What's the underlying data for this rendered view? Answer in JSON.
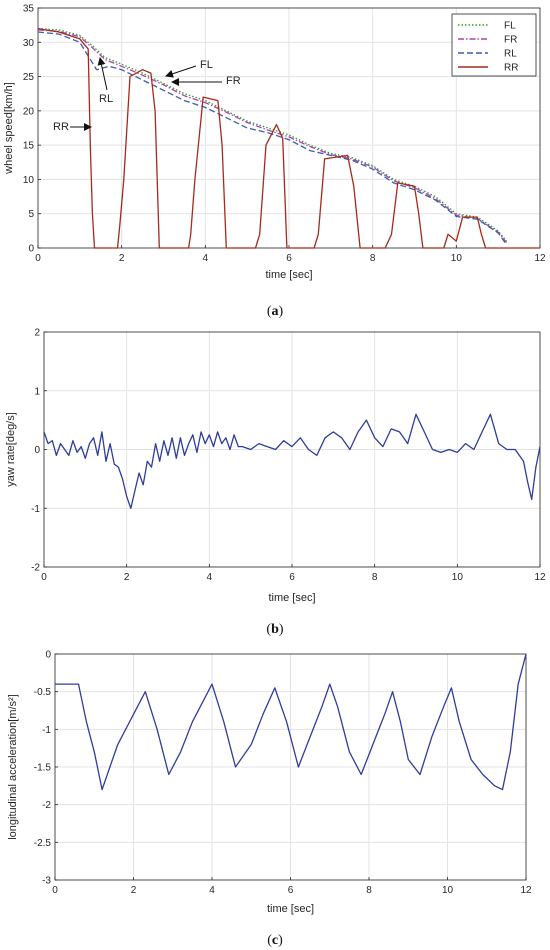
{
  "chart_data": [
    {
      "type": "line",
      "panel": "a",
      "caption_letter": "a",
      "xlabel": "time [sec]",
      "ylabel": "wheel speed[km/h]",
      "xlim": [
        0,
        12
      ],
      "ylim": [
        0,
        35
      ],
      "xticks": [
        0,
        2,
        4,
        6,
        8,
        10,
        12
      ],
      "yticks": [
        0,
        5,
        10,
        15,
        20,
        25,
        30,
        35
      ],
      "grid": true,
      "legend": "top-right",
      "annotations": [
        "FL",
        "FR",
        "RL",
        "RR"
      ],
      "series": [
        {
          "name": "FL",
          "color": "#2ca02c",
          "dash": "dotted",
          "x": [
            0,
            0.5,
            1.0,
            1.3,
            1.6,
            2.0,
            2.5,
            3.0,
            3.5,
            4.0,
            4.5,
            5.0,
            5.5,
            6.0,
            6.5,
            7.0,
            7.5,
            8.0,
            8.5,
            9.0,
            9.5,
            10.0,
            10.5,
            11.0,
            11.2
          ],
          "y": [
            32,
            31.8,
            31,
            29.5,
            27.8,
            26.8,
            25.5,
            24,
            22.5,
            21.5,
            20,
            18.5,
            17.5,
            16.5,
            15,
            13.8,
            13.2,
            12,
            10,
            9,
            7.5,
            5,
            4.5,
            2.5,
            1
          ]
        },
        {
          "name": "FR",
          "color": "#b040b0",
          "dash": "dashdot",
          "x": [
            0,
            0.5,
            1.0,
            1.3,
            1.6,
            2.0,
            2.5,
            3.0,
            3.5,
            4.0,
            4.5,
            5.0,
            5.5,
            6.0,
            6.5,
            7.0,
            7.5,
            8.0,
            8.5,
            9.0,
            9.5,
            10.0,
            10.5,
            11.0,
            11.2
          ],
          "y": [
            31.8,
            31.6,
            30.8,
            29.2,
            27.5,
            26.5,
            25.2,
            23.8,
            22.2,
            21.2,
            19.8,
            18.3,
            17.2,
            16.2,
            14.8,
            13.6,
            13,
            11.8,
            9.8,
            8.8,
            7.2,
            4.8,
            4.3,
            2.3,
            0.8
          ]
        },
        {
          "name": "RL",
          "color": "#3a5fa8",
          "dash": "dashed",
          "x": [
            0,
            0.5,
            1.0,
            1.2,
            1.4,
            1.7,
            2.0,
            2.5,
            3.0,
            3.5,
            4.0,
            4.5,
            5.0,
            5.5,
            6.0,
            6.5,
            7.0,
            7.5,
            8.0,
            8.5,
            9.0,
            9.5,
            10.0,
            10.5,
            11.0,
            11.2
          ],
          "y": [
            31.5,
            31.2,
            30,
            28,
            26,
            26.5,
            26,
            24.5,
            23,
            21.5,
            20.5,
            19,
            17.5,
            16.8,
            15.8,
            14.2,
            13.5,
            12.8,
            11.5,
            9.5,
            8.5,
            7,
            4.6,
            4.2,
            2.2,
            0.5
          ]
        },
        {
          "name": "RR",
          "color": "#a52a1a",
          "dash": "solid",
          "x": [
            0,
            0.5,
            1.0,
            1.2,
            1.25,
            1.3,
            1.35,
            1.4,
            1.9,
            1.95,
            2.05,
            2.2,
            2.5,
            2.7,
            2.8,
            2.9,
            3.6,
            3.65,
            3.75,
            3.95,
            4.3,
            4.4,
            4.5,
            5.2,
            5.3,
            5.45,
            5.7,
            5.85,
            5.95,
            6.6,
            6.7,
            6.85,
            7.4,
            7.55,
            7.7,
            8.3,
            8.45,
            8.6,
            9.0,
            9.1,
            9.2,
            9.7,
            9.8,
            10.0,
            10.15,
            10.5,
            10.6,
            10.7,
            11.25,
            12
          ],
          "y": [
            32,
            31.5,
            30.5,
            29,
            15,
            5,
            0,
            0,
            0,
            3,
            10,
            25,
            26,
            25.5,
            20,
            0,
            0,
            2,
            10,
            22,
            21.5,
            15,
            0,
            0,
            2,
            15,
            18,
            16,
            0,
            0,
            2,
            13,
            13.5,
            9,
            0,
            0,
            2,
            9.5,
            9,
            5,
            0,
            0,
            2,
            1,
            4.5,
            4.5,
            2,
            0,
            0,
            0
          ]
        }
      ]
    },
    {
      "type": "line",
      "panel": "b",
      "caption_letter": "b",
      "xlabel": "time [sec]",
      "ylabel": "yaw rate[deg/s]",
      "xlim": [
        0,
        12
      ],
      "ylim": [
        -2,
        2
      ],
      "xticks": [
        0,
        2,
        4,
        6,
        8,
        10,
        12
      ],
      "yticks": [
        -2,
        -1,
        0,
        1,
        2
      ],
      "grid": true,
      "series": [
        {
          "color": "#2e3d9c",
          "x": [
            0,
            0.1,
            0.2,
            0.3,
            0.4,
            0.5,
            0.6,
            0.7,
            0.8,
            0.9,
            1.0,
            1.1,
            1.2,
            1.3,
            1.4,
            1.5,
            1.6,
            1.7,
            1.8,
            1.9,
            2.0,
            2.1,
            2.2,
            2.3,
            2.4,
            2.5,
            2.6,
            2.7,
            2.8,
            2.9,
            3.0,
            3.1,
            3.2,
            3.3,
            3.4,
            3.5,
            3.6,
            3.7,
            3.8,
            3.9,
            4.0,
            4.1,
            4.2,
            4.3,
            4.4,
            4.5,
            4.6,
            4.7,
            4.8,
            5.0,
            5.2,
            5.4,
            5.6,
            5.8,
            6.0,
            6.2,
            6.4,
            6.6,
            6.8,
            7.0,
            7.2,
            7.4,
            7.6,
            7.8,
            8.0,
            8.2,
            8.4,
            8.6,
            8.8,
            9.0,
            9.2,
            9.4,
            9.6,
            9.8,
            10.0,
            10.2,
            10.4,
            10.6,
            10.8,
            11.0,
            11.2,
            11.4,
            11.6,
            11.7,
            11.8,
            11.9,
            12.0
          ],
          "y": [
            0.3,
            0.1,
            0.15,
            -0.1,
            0.1,
            0.0,
            -0.1,
            0.15,
            -0.05,
            0.05,
            -0.15,
            0.1,
            0.2,
            -0.1,
            0.3,
            -0.2,
            0.1,
            -0.25,
            -0.3,
            -0.5,
            -0.8,
            -1.0,
            -0.7,
            -0.4,
            -0.6,
            -0.2,
            -0.3,
            0.1,
            -0.2,
            0.15,
            -0.1,
            0.2,
            -0.15,
            0.2,
            -0.1,
            0.1,
            0.25,
            -0.05,
            0.3,
            0.1,
            0.25,
            0.05,
            0.3,
            0.1,
            0.2,
            0.0,
            0.25,
            0.05,
            0.05,
            0.0,
            0.1,
            0.05,
            0.0,
            0.15,
            0.05,
            0.2,
            0.0,
            -0.1,
            0.2,
            0.3,
            0.2,
            0.0,
            0.3,
            0.5,
            0.2,
            0.05,
            0.35,
            0.3,
            0.1,
            0.6,
            0.3,
            0.0,
            -0.05,
            0.0,
            -0.05,
            0.1,
            0.0,
            0.3,
            0.6,
            0.1,
            0.0,
            0.0,
            -0.2,
            -0.55,
            -0.85,
            -0.3,
            0.05
          ]
        }
      ]
    },
    {
      "type": "line",
      "panel": "c",
      "caption_letter": "c",
      "xlabel": "time [sec]",
      "ylabel": "longitudinal acceleration[m/s²]",
      "xlim": [
        0,
        12
      ],
      "ylim": [
        -3,
        0
      ],
      "xticks": [
        0,
        2,
        4,
        6,
        8,
        10,
        12
      ],
      "yticks": [
        -3,
        -2.5,
        -2,
        -1.5,
        -1,
        -0.5,
        0
      ],
      "grid": true,
      "series": [
        {
          "color": "#2e3d9c",
          "x": [
            0,
            0.3,
            0.6,
            0.8,
            1.0,
            1.2,
            1.4,
            1.6,
            2.0,
            2.3,
            2.6,
            2.9,
            3.2,
            3.5,
            3.8,
            4.0,
            4.3,
            4.6,
            5.0,
            5.3,
            5.6,
            5.9,
            6.2,
            6.5,
            6.8,
            7.0,
            7.2,
            7.5,
            7.8,
            8.1,
            8.4,
            8.6,
            8.8,
            9.0,
            9.3,
            9.6,
            9.9,
            10.1,
            10.3,
            10.6,
            10.9,
            11.2,
            11.4,
            11.6,
            11.8,
            12.0
          ],
          "y": [
            -0.4,
            -0.4,
            -0.4,
            -0.9,
            -1.3,
            -1.8,
            -1.5,
            -1.2,
            -0.8,
            -0.5,
            -1.0,
            -1.6,
            -1.3,
            -0.9,
            -0.6,
            -0.4,
            -0.9,
            -1.5,
            -1.2,
            -0.8,
            -0.45,
            -0.9,
            -1.5,
            -1.1,
            -0.7,
            -0.4,
            -0.7,
            -1.3,
            -1.6,
            -1.2,
            -0.8,
            -0.5,
            -0.9,
            -1.4,
            -1.6,
            -1.1,
            -0.7,
            -0.45,
            -0.9,
            -1.4,
            -1.6,
            -1.75,
            -1.8,
            -1.3,
            -0.4,
            0.0
          ]
        }
      ]
    }
  ],
  "captions": [
    "(a)",
    "(b)",
    "(c)"
  ]
}
